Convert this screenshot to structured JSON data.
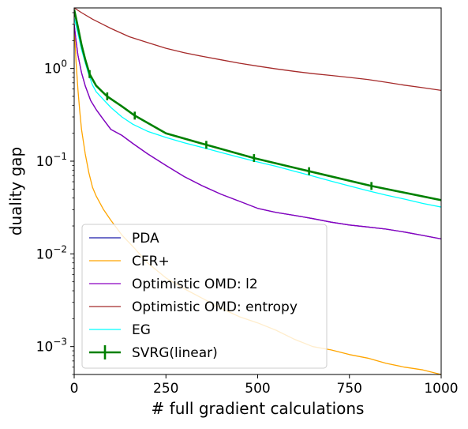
{
  "chart_data": {
    "type": "line",
    "title": "",
    "xlabel": "# full gradient calculations",
    "ylabel": "duality gap",
    "xlim": [
      0,
      1000
    ],
    "ylim": [
      0.0005,
      4.5
    ],
    "yscale": "log",
    "grid": false,
    "legend_position": "lower-left",
    "x_ticks": [
      {
        "value": 0,
        "label": "0"
      },
      {
        "value": 250,
        "label": "250"
      },
      {
        "value": 500,
        "label": "500"
      },
      {
        "value": 750,
        "label": "750"
      },
      {
        "value": 1000,
        "label": "1000"
      }
    ],
    "y_ticks": [
      {
        "value": 0.001,
        "base": "10",
        "exp": "−3"
      },
      {
        "value": 0.01,
        "base": "10",
        "exp": "−2"
      },
      {
        "value": 0.1,
        "base": "10",
        "exp": "−1"
      },
      {
        "value": 1,
        "base": "10",
        "exp": "0"
      }
    ],
    "series": [
      {
        "name": "PDA",
        "color": "#1a1aaa",
        "x": [
          0,
          5,
          10,
          20,
          30,
          45,
          60,
          80,
          100,
          130,
          160,
          200,
          250,
          300,
          350,
          400,
          450,
          500,
          550,
          600,
          650,
          700,
          750,
          800,
          850,
          900,
          950,
          1000
        ],
        "y": [
          3.0,
          2.0,
          1.4,
          0.9,
          0.65,
          0.45,
          0.36,
          0.28,
          0.22,
          0.19,
          0.155,
          0.12,
          0.09,
          0.068,
          0.054,
          0.044,
          0.037,
          0.031,
          0.028,
          0.026,
          0.024,
          0.022,
          0.0205,
          0.0195,
          0.0185,
          0.0172,
          0.0158,
          0.0145
        ]
      },
      {
        "name": "CFR+",
        "color": "#ffa500",
        "x": [
          0,
          5,
          10,
          15,
          20,
          30,
          40,
          50,
          60,
          80,
          100,
          130,
          160,
          200,
          250,
          300,
          350,
          400,
          450,
          500,
          550,
          600,
          650,
          700,
          750,
          800,
          850,
          900,
          950,
          1000
        ],
        "y": [
          3.0,
          1.2,
          0.6,
          0.35,
          0.22,
          0.12,
          0.075,
          0.052,
          0.042,
          0.03,
          0.023,
          0.016,
          0.012,
          0.008,
          0.0055,
          0.0042,
          0.0033,
          0.0026,
          0.0021,
          0.0018,
          0.0015,
          0.0012,
          0.001,
          0.00092,
          0.00082,
          0.00075,
          0.00066,
          0.0006,
          0.00056,
          0.0005
        ]
      },
      {
        "name": "Optimistic OMD: l2",
        "color": "#8b00c0",
        "x": [
          0,
          5,
          10,
          20,
          30,
          45,
          60,
          80,
          100,
          130,
          160,
          200,
          250,
          300,
          350,
          400,
          450,
          500,
          550,
          600,
          650,
          700,
          750,
          800,
          850,
          900,
          950,
          1000
        ],
        "y": [
          3.0,
          2.0,
          1.4,
          0.9,
          0.65,
          0.45,
          0.36,
          0.28,
          0.22,
          0.19,
          0.155,
          0.12,
          0.09,
          0.068,
          0.054,
          0.044,
          0.037,
          0.031,
          0.028,
          0.026,
          0.024,
          0.022,
          0.0205,
          0.0195,
          0.0185,
          0.0172,
          0.0158,
          0.0145
        ]
      },
      {
        "name": "Optimistic OMD: entropy",
        "color": "#a52a2a",
        "x": [
          0,
          20,
          50,
          100,
          150,
          200,
          250,
          300,
          350,
          400,
          450,
          500,
          550,
          600,
          650,
          700,
          750,
          800,
          850,
          900,
          950,
          1000
        ],
        "y": [
          4.5,
          4.0,
          3.4,
          2.7,
          2.2,
          1.9,
          1.65,
          1.48,
          1.35,
          1.24,
          1.14,
          1.06,
          0.99,
          0.93,
          0.88,
          0.84,
          0.8,
          0.76,
          0.71,
          0.66,
          0.62,
          0.58
        ]
      },
      {
        "name": "EG",
        "color": "#00ffff",
        "x": [
          0,
          10,
          20,
          30,
          40,
          50,
          60,
          80,
          100,
          130,
          160,
          200,
          250,
          300,
          350,
          400,
          450,
          500,
          550,
          600,
          650,
          700,
          750,
          800,
          850,
          900,
          950,
          1000
        ],
        "y": [
          3.5,
          2.4,
          1.6,
          1.15,
          0.85,
          0.66,
          0.56,
          0.46,
          0.38,
          0.3,
          0.25,
          0.21,
          0.18,
          0.158,
          0.14,
          0.124,
          0.11,
          0.098,
          0.088,
          0.078,
          0.069,
          0.061,
          0.054,
          0.048,
          0.043,
          0.039,
          0.035,
          0.032
        ]
      },
      {
        "name": "SVRG(linear)",
        "color": "#008000",
        "x": [
          0,
          10,
          20,
          30,
          42,
          60,
          90,
          130,
          165,
          250,
          360,
          490,
          640,
          810,
          1000
        ],
        "y": [
          4.3,
          2.8,
          1.8,
          1.25,
          0.87,
          0.65,
          0.5,
          0.39,
          0.31,
          0.2,
          0.15,
          0.108,
          0.078,
          0.054,
          0.038
        ],
        "error_bar_x": [
          42,
          90,
          165,
          360,
          490,
          640,
          810
        ]
      }
    ]
  }
}
